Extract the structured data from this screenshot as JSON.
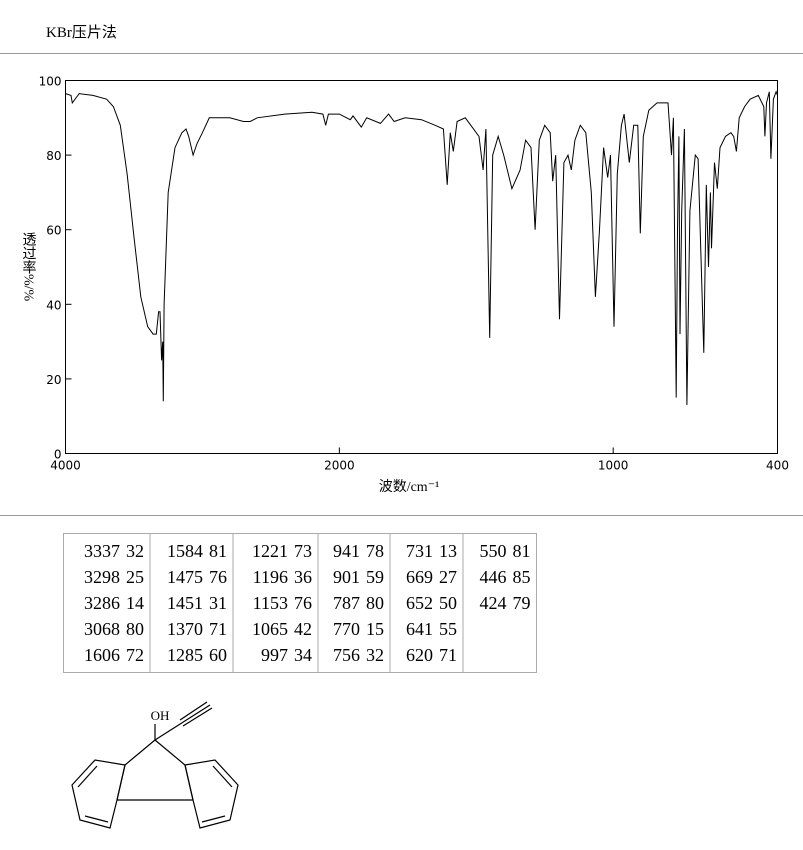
{
  "header": {
    "title": "KBr压片法"
  },
  "chart_data": {
    "type": "line",
    "xlabel": "波数/cm⁻¹",
    "ylabel": "透过率%/%",
    "xlim": [
      4000,
      400
    ],
    "ylim": [
      0,
      100
    ],
    "xticks": [
      4000,
      2000,
      1000,
      400
    ],
    "yticks": [
      0,
      20,
      40,
      60,
      80,
      100
    ],
    "series": [
      {
        "color": "#000000",
        "x": [
          4000,
          3960,
          3950,
          3900,
          3800,
          3700,
          3650,
          3600,
          3550,
          3500,
          3450,
          3400,
          3360,
          3337,
          3320,
          3310,
          3298,
          3290,
          3286,
          3280,
          3250,
          3200,
          3150,
          3120,
          3100,
          3068,
          3040,
          3000,
          2950,
          2900,
          2800,
          2700,
          2650,
          2600,
          2400,
          2200,
          2120,
          2100,
          2080,
          2000,
          1960,
          1950,
          1920,
          1900,
          1850,
          1820,
          1800,
          1760,
          1700,
          1650,
          1620,
          1606,
          1595,
          1584,
          1570,
          1540,
          1520,
          1490,
          1475,
          1465,
          1451,
          1440,
          1420,
          1400,
          1370,
          1340,
          1320,
          1300,
          1285,
          1270,
          1250,
          1230,
          1221,
          1210,
          1196,
          1180,
          1165,
          1153,
          1140,
          1120,
          1100,
          1080,
          1065,
          1050,
          1035,
          1020,
          1010,
          997,
          985,
          970,
          960,
          941,
          925,
          910,
          901,
          890,
          870,
          840,
          800,
          787,
          780,
          770,
          765,
          760,
          756,
          750,
          740,
          731,
          720,
          700,
          690,
          669,
          660,
          652,
          645,
          641,
          630,
          620,
          610,
          590,
          570,
          560,
          550,
          540,
          520,
          500,
          470,
          450,
          446,
          440,
          430,
          424,
          415,
          405,
          400
        ],
        "values": [
          96.5,
          96,
          94,
          96.5,
          96,
          95,
          93,
          88,
          75,
          58,
          42,
          34,
          32,
          32,
          38,
          38,
          25,
          30,
          14,
          40,
          70,
          82,
          86,
          87,
          85,
          80,
          83,
          86,
          90,
          90,
          90,
          89,
          89,
          90,
          91,
          91.5,
          91,
          88,
          91,
          91,
          89.5,
          90.5,
          87.5,
          90,
          88.5,
          91,
          89,
          90,
          89.5,
          88,
          87,
          72,
          86,
          81,
          89,
          90,
          88,
          85,
          76,
          87,
          31,
          80,
          85,
          80,
          71,
          76,
          84,
          82,
          60,
          84,
          88,
          86,
          73,
          80,
          36,
          78,
          80,
          76,
          84,
          88,
          86,
          70,
          42,
          60,
          82,
          74,
          80,
          34,
          75,
          88,
          91,
          78,
          88,
          88,
          59,
          85,
          92,
          94,
          94,
          80,
          90,
          15,
          60,
          85,
          32,
          65,
          87,
          13,
          65,
          80,
          79,
          27,
          72,
          50,
          70,
          55,
          78,
          71,
          82,
          85,
          86,
          85,
          81,
          90,
          93,
          95,
          96,
          93,
          85,
          94,
          97,
          79,
          95,
          97,
          96
        ]
      }
    ]
  },
  "table": {
    "columns": [
      [
        [
          3337,
          32
        ],
        [
          3298,
          25
        ],
        [
          3286,
          14
        ],
        [
          3068,
          80
        ],
        [
          1606,
          72
        ]
      ],
      [
        [
          1584,
          81
        ],
        [
          1475,
          76
        ],
        [
          1451,
          31
        ],
        [
          1370,
          71
        ],
        [
          1285,
          60
        ]
      ],
      [
        [
          1221,
          73
        ],
        [
          1196,
          36
        ],
        [
          1153,
          76
        ],
        [
          1065,
          42
        ],
        [
          997,
          34
        ]
      ],
      [
        [
          941,
          78
        ],
        [
          901,
          59
        ],
        [
          787,
          80
        ],
        [
          770,
          15
        ],
        [
          756,
          32
        ]
      ],
      [
        [
          731,
          13
        ],
        [
          669,
          27
        ],
        [
          652,
          50
        ],
        [
          641,
          55
        ],
        [
          620,
          71
        ]
      ],
      [
        [
          550,
          81
        ],
        [
          446,
          85
        ],
        [
          424,
          79
        ]
      ]
    ]
  },
  "structure": {
    "label": "OH"
  }
}
